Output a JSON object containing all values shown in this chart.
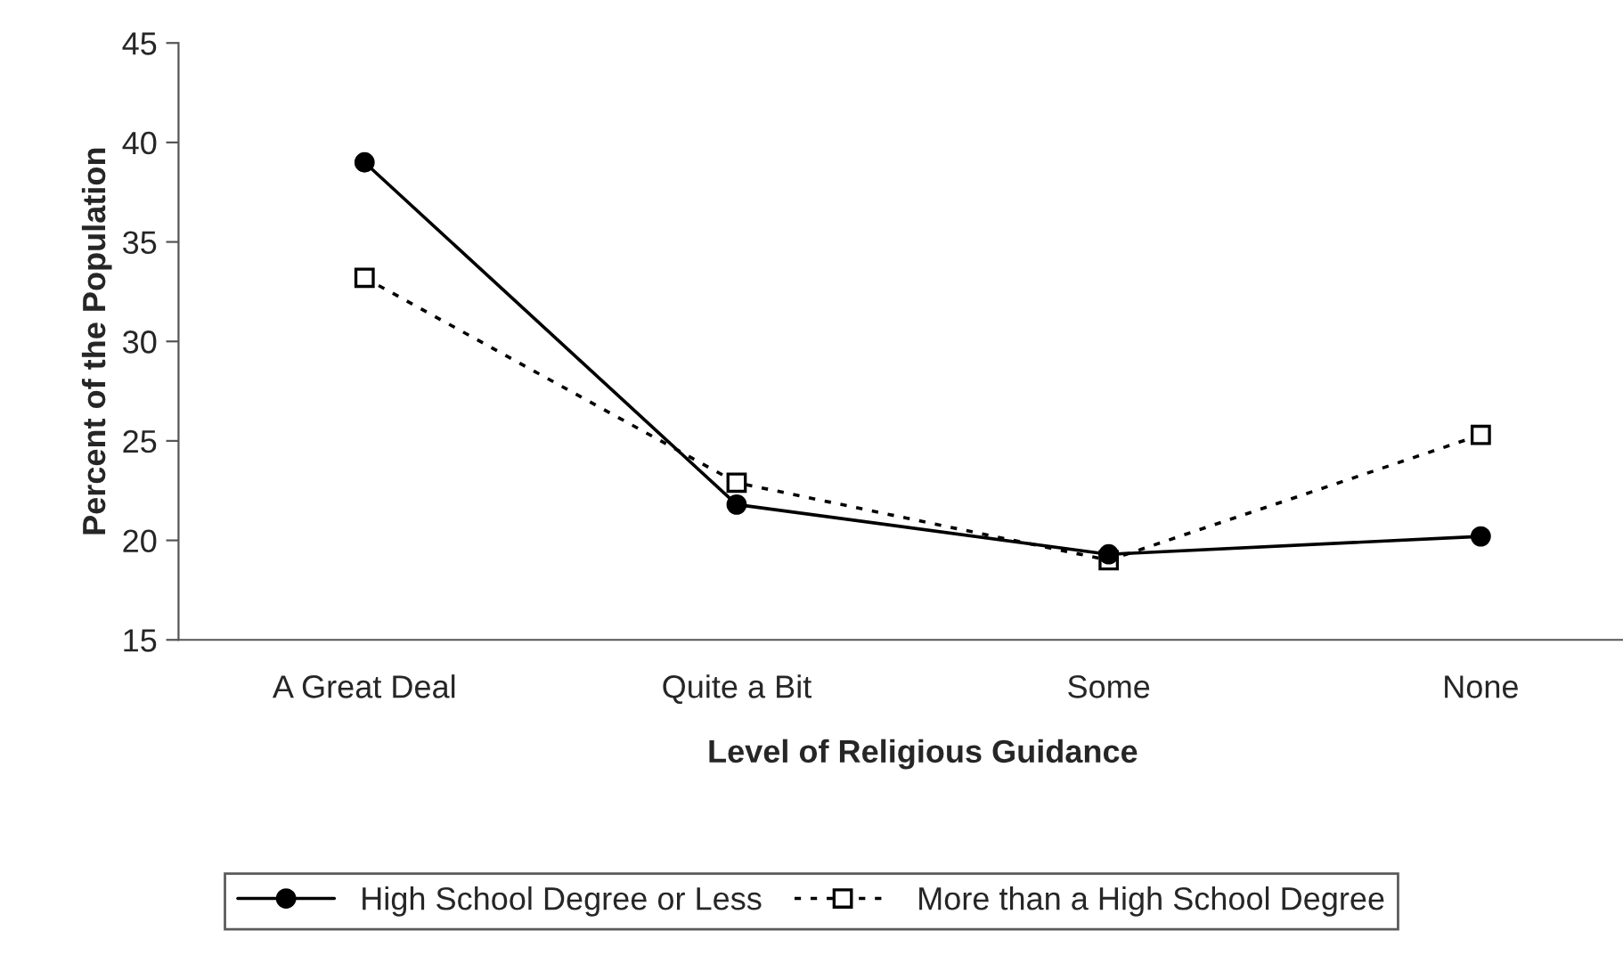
{
  "chart_data": {
    "type": "line",
    "xlabel": "Level of Religious Guidance",
    "ylabel": "Percent of the Population",
    "categories": [
      "A Great Deal",
      "Quite a Bit",
      "Some",
      "None"
    ],
    "series": [
      {
        "name": "High School Degree or Less",
        "color": "#000000",
        "values": [
          39.0,
          21.8,
          19.3,
          20.2
        ],
        "marker": "circle",
        "line_style": "solid"
      },
      {
        "name": "More than a High School Degree",
        "color": "#000000",
        "values": [
          33.2,
          22.9,
          19.0,
          25.3
        ],
        "marker": "square",
        "line_style": "dotted"
      }
    ],
    "ylim": [
      15,
      45
    ],
    "yticks": [
      15,
      20,
      25,
      30,
      35,
      40,
      45
    ],
    "grid": false,
    "legend": "bottom"
  }
}
